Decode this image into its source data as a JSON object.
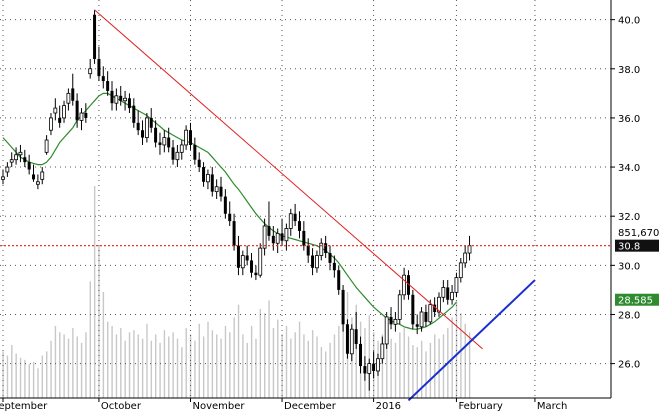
{
  "chart_data": {
    "type": "candlestick",
    "grid": true,
    "ylim": [
      24.6,
      40.8
    ],
    "y_ticks": [
      "26.0",
      "28.0",
      "30.0",
      "32.0",
      "34.0",
      "36.0",
      "38.0",
      "40.0"
    ],
    "months": [
      {
        "label": "September",
        "x": 0
      },
      {
        "label": "October",
        "x": 22
      },
      {
        "label": "November",
        "x": 43
      },
      {
        "label": "December",
        "x": 64
      },
      {
        "label": "2016",
        "x": 85
      },
      {
        "label": "February",
        "x": 104
      },
      {
        "label": "March",
        "x": 122
      }
    ],
    "candles": [
      [
        33.5,
        33.9,
        33.3,
        33.6
      ],
      [
        33.8,
        34.2,
        33.6,
        34.0
      ],
      [
        34.2,
        34.6,
        34.0,
        34.3
      ],
      [
        34.3,
        34.8,
        34.1,
        34.5
      ],
      [
        34.5,
        34.9,
        34.2,
        34.6
      ],
      [
        34.4,
        34.7,
        34.0,
        34.2
      ],
      [
        34.2,
        34.5,
        33.7,
        33.9
      ],
      [
        33.7,
        34.1,
        33.4,
        33.5
      ],
      [
        33.3,
        33.7,
        33.1,
        33.4
      ],
      [
        33.5,
        34.0,
        33.3,
        33.8
      ],
      [
        34.6,
        35.3,
        34.5,
        35.1
      ],
      [
        35.5,
        36.2,
        35.3,
        36.0
      ],
      [
        36.2,
        36.8,
        35.9,
        36.4
      ],
      [
        36.0,
        36.5,
        35.6,
        35.8
      ],
      [
        36.0,
        36.7,
        35.8,
        36.5
      ],
      [
        36.6,
        37.2,
        36.3,
        37.0
      ],
      [
        37.2,
        37.8,
        36.5,
        36.7
      ],
      [
        36.7,
        37.0,
        35.6,
        35.9
      ],
      [
        35.9,
        36.4,
        35.5,
        36.2
      ],
      [
        36.2,
        36.6,
        35.8,
        36.0
      ],
      [
        37.8,
        38.4,
        37.6,
        38.0
      ],
      [
        40.2,
        40.4,
        38.2,
        38.4
      ],
      [
        38.4,
        38.9,
        37.5,
        37.7
      ],
      [
        37.7,
        38.1,
        37.2,
        37.5
      ],
      [
        37.5,
        37.9,
        36.9,
        37.1
      ],
      [
        37.1,
        37.5,
        36.3,
        36.6
      ],
      [
        36.6,
        37.2,
        36.3,
        36.9
      ],
      [
        36.9,
        37.3,
        36.5,
        36.7
      ],
      [
        36.7,
        37.1,
        36.3,
        36.8
      ],
      [
        36.8,
        37.0,
        36.2,
        36.4
      ],
      [
        36.5,
        36.8,
        35.6,
        35.8
      ],
      [
        35.8,
        36.3,
        35.3,
        35.5
      ],
      [
        35.5,
        35.9,
        34.9,
        35.2
      ],
      [
        35.2,
        36.2,
        35.0,
        36.0
      ],
      [
        36.0,
        36.4,
        35.4,
        35.6
      ],
      [
        35.6,
        35.9,
        34.8,
        35.0
      ],
      [
        35.0,
        35.4,
        34.5,
        34.9
      ],
      [
        34.9,
        35.5,
        34.6,
        35.2
      ],
      [
        35.2,
        35.6,
        34.6,
        34.8
      ],
      [
        34.8,
        35.1,
        34.1,
        34.3
      ],
      [
        34.3,
        34.9,
        34.0,
        34.6
      ],
      [
        34.6,
        35.1,
        34.3,
        34.9
      ],
      [
        34.9,
        35.7,
        34.7,
        35.5
      ],
      [
        35.5,
        35.8,
        34.7,
        34.9
      ],
      [
        34.9,
        35.2,
        34.1,
        34.3
      ],
      [
        34.3,
        34.6,
        33.8,
        34.0
      ],
      [
        34.0,
        34.2,
        33.2,
        33.4
      ],
      [
        33.4,
        33.9,
        33.1,
        33.7
      ],
      [
        33.7,
        34.0,
        32.8,
        33.0
      ],
      [
        33.0,
        33.5,
        32.7,
        33.2
      ],
      [
        33.2,
        33.6,
        32.6,
        32.8
      ],
      [
        32.8,
        33.1,
        31.9,
        32.1
      ],
      [
        32.1,
        32.6,
        31.6,
        31.8
      ],
      [
        31.8,
        32.1,
        30.6,
        30.8
      ],
      [
        30.8,
        31.2,
        29.6,
        29.9
      ],
      [
        29.9,
        30.6,
        29.6,
        30.4
      ],
      [
        30.4,
        30.8,
        30.0,
        30.2
      ],
      [
        30.2,
        30.5,
        29.5,
        29.7
      ],
      [
        29.7,
        30.0,
        29.4,
        29.6
      ],
      [
        29.6,
        30.9,
        29.5,
        30.7
      ],
      [
        30.7,
        31.9,
        30.4,
        31.6
      ],
      [
        31.6,
        32.6,
        31.0,
        31.2
      ],
      [
        31.2,
        31.6,
        30.6,
        30.9
      ],
      [
        30.9,
        31.5,
        30.5,
        31.3
      ],
      [
        31.3,
        31.9,
        30.8,
        31.0
      ],
      [
        31.0,
        31.7,
        30.6,
        31.5
      ],
      [
        31.5,
        32.3,
        31.2,
        32.1
      ],
      [
        32.1,
        32.5,
        31.6,
        31.8
      ],
      [
        31.8,
        32.2,
        31.1,
        31.4
      ],
      [
        31.4,
        31.8,
        30.6,
        30.8
      ],
      [
        30.8,
        31.1,
        30.1,
        30.4
      ],
      [
        30.4,
        30.7,
        29.6,
        29.9
      ],
      [
        29.9,
        30.6,
        29.7,
        30.4
      ],
      [
        30.4,
        31.1,
        30.2,
        30.9
      ],
      [
        30.9,
        31.2,
        30.3,
        30.5
      ],
      [
        30.5,
        30.8,
        29.8,
        30.1
      ],
      [
        30.1,
        30.4,
        29.5,
        29.8
      ],
      [
        29.8,
        30.0,
        28.8,
        29.0
      ],
      [
        29.0,
        29.2,
        27.3,
        27.6
      ],
      [
        27.6,
        27.8,
        26.2,
        26.4
      ],
      [
        26.4,
        27.6,
        26.1,
        27.4
      ],
      [
        27.4,
        28.1,
        26.6,
        26.8
      ],
      [
        26.8,
        27.1,
        25.6,
        25.9
      ],
      [
        25.9,
        26.3,
        25.3,
        25.6
      ],
      [
        25.6,
        26.2,
        24.9,
        26.0
      ],
      [
        26.0,
        26.5,
        25.4,
        25.7
      ],
      [
        25.7,
        26.4,
        25.5,
        26.2
      ],
      [
        26.2,
        27.1,
        26.0,
        26.8
      ],
      [
        26.8,
        28.1,
        26.6,
        27.9
      ],
      [
        27.9,
        28.3,
        27.4,
        27.6
      ],
      [
        27.6,
        28.1,
        27.3,
        27.8
      ],
      [
        27.8,
        29.0,
        27.6,
        28.8
      ],
      [
        28.8,
        29.9,
        28.6,
        29.6
      ],
      [
        29.6,
        29.8,
        28.6,
        28.8
      ],
      [
        28.8,
        29.0,
        27.4,
        27.6
      ],
      [
        27.6,
        28.0,
        27.2,
        27.5
      ],
      [
        27.5,
        28.3,
        27.3,
        28.1
      ],
      [
        28.1,
        28.4,
        27.5,
        27.7
      ],
      [
        27.7,
        28.6,
        27.6,
        28.4
      ],
      [
        28.4,
        28.7,
        27.9,
        28.1
      ],
      [
        28.1,
        28.9,
        27.9,
        28.7
      ],
      [
        28.7,
        29.4,
        28.5,
        29.1
      ],
      [
        29.1,
        29.4,
        28.4,
        28.6
      ],
      [
        28.6,
        29.2,
        28.4,
        28.9
      ],
      [
        28.9,
        29.7,
        28.7,
        29.5
      ],
      [
        29.5,
        30.3,
        29.3,
        30.1
      ],
      [
        30.1,
        30.8,
        29.9,
        30.5
      ],
      [
        30.5,
        31.2,
        30.2,
        30.8
      ]
    ],
    "volume": [
      0.22,
      0.2,
      0.25,
      0.21,
      0.19,
      0.18,
      0.16,
      0.17,
      0.14,
      0.2,
      0.22,
      0.27,
      0.34,
      0.31,
      0.3,
      0.28,
      0.33,
      0.29,
      0.26,
      0.31,
      0.55,
      1.0,
      0.72,
      0.5,
      0.36,
      0.34,
      0.3,
      0.33,
      0.27,
      0.31,
      0.32,
      0.3,
      0.28,
      0.35,
      0.27,
      0.3,
      0.26,
      0.32,
      0.29,
      0.31,
      0.28,
      0.24,
      0.33,
      0.3,
      0.27,
      0.35,
      0.29,
      0.36,
      0.32,
      0.3,
      0.28,
      0.34,
      0.31,
      0.38,
      0.44,
      0.3,
      0.26,
      0.34,
      0.28,
      0.42,
      0.4,
      0.46,
      0.33,
      0.37,
      0.3,
      0.34,
      0.28,
      0.31,
      0.36,
      0.3,
      0.27,
      0.32,
      0.29,
      0.24,
      0.22,
      0.26,
      0.3,
      0.34,
      0.4,
      0.5,
      0.38,
      0.44,
      0.36,
      0.33,
      0.39,
      0.31,
      0.27,
      0.3,
      0.34,
      0.28,
      0.26,
      0.31,
      0.33,
      0.29,
      0.25,
      0.24,
      0.27,
      0.22,
      0.26,
      0.3,
      0.28,
      0.3,
      0.33,
      0.38,
      0.46,
      0.4,
      0.35,
      0.31
    ],
    "moving_average": {
      "color": "#2e8b2e",
      "values": [
        35.2,
        35.0,
        34.8,
        34.6,
        34.4,
        34.3,
        34.2,
        34.15,
        34.1,
        34.1,
        34.2,
        34.4,
        34.7,
        35.0,
        35.2,
        35.4,
        35.6,
        35.9,
        36.1,
        36.3,
        36.5,
        36.7,
        36.9,
        37.0,
        37.0,
        36.9,
        36.8,
        36.7,
        36.6,
        36.5,
        36.4,
        36.3,
        36.2,
        36.1,
        35.95,
        35.8,
        35.65,
        35.5,
        35.4,
        35.3,
        35.2,
        35.1,
        35.05,
        35.0,
        34.9,
        34.8,
        34.7,
        34.6,
        34.4,
        34.2,
        34.0,
        33.8,
        33.55,
        33.3,
        33.1,
        32.85,
        32.6,
        32.35,
        32.1,
        31.9,
        31.7,
        31.55,
        31.4,
        31.3,
        31.2,
        31.15,
        31.1,
        31.05,
        31.0,
        30.95,
        30.9,
        30.85,
        30.8,
        30.7,
        30.6,
        30.45,
        30.3,
        30.1,
        29.85,
        29.6,
        29.35,
        29.1,
        28.9,
        28.7,
        28.5,
        28.3,
        28.15,
        28.0,
        27.85,
        27.75,
        27.65,
        27.6,
        27.5,
        27.45,
        27.4,
        27.4,
        27.45,
        27.5,
        27.6,
        27.7,
        27.85,
        28.0,
        28.15,
        28.3,
        28.5
      ]
    },
    "trendlines": [
      {
        "color": "#e02020",
        "x": [
          21,
          110
        ],
        "y": [
          40.4,
          26.6
        ]
      },
      {
        "color": "#1a2fd0",
        "x": [
          93,
          122
        ],
        "y": [
          24.5,
          29.4
        ]
      }
    ],
    "reference_line": {
      "color": "#e02020",
      "y": 30.8,
      "label": "30.8"
    },
    "last_price_tag": {
      "label": "30.8",
      "color": "#111111",
      "y": 30.8
    },
    "volume_tag": {
      "label": "851,670",
      "y": 31.35
    },
    "ma_tag": {
      "label": "28.585",
      "color": "#2e8b2e",
      "y": 28.6
    }
  }
}
